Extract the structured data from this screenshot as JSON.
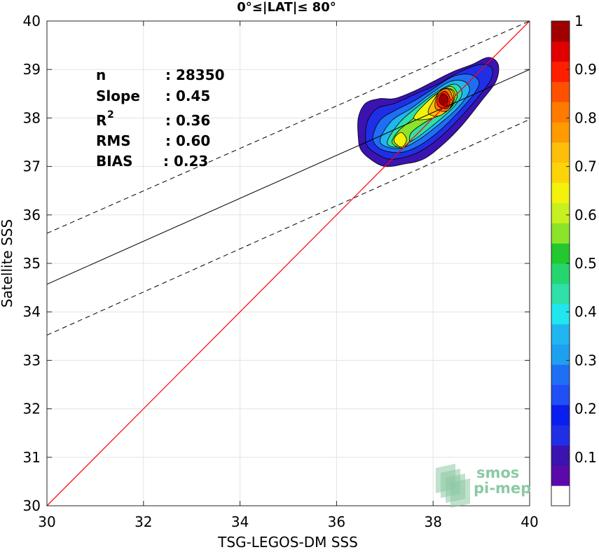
{
  "chart_data": {
    "type": "contour-scatter",
    "title": "0°≤|LAT|≤ 80°",
    "xlabel": "TSG-LEGOS-DM SSS",
    "ylabel": "Satellite SSS",
    "xlim": [
      30,
      40
    ],
    "ylim": [
      30,
      40
    ],
    "xticks": [
      "30",
      "32",
      "34",
      "36",
      "38",
      "40"
    ],
    "yticks": [
      "30",
      "31",
      "32",
      "33",
      "34",
      "35",
      "36",
      "37",
      "38",
      "39",
      "40"
    ],
    "grid": true,
    "stats": [
      {
        "label": "n",
        "value": ": 28350"
      },
      {
        "label": "Slope",
        "value": ": 0.45"
      },
      {
        "label": "R",
        "sup": "2",
        "value": ": 0.36"
      },
      {
        "label": "RMS",
        "value": ": 0.60"
      },
      {
        "label": "BIAS",
        "value": ": 0.23"
      }
    ],
    "lines": {
      "identity": {
        "x": [
          30,
          40
        ],
        "y": [
          30,
          40
        ],
        "color": "#ff0000"
      },
      "fit": {
        "x": [
          30,
          40
        ],
        "y": [
          34.57,
          39.0
        ],
        "color": "#000000"
      },
      "fit_upper": {
        "x": [
          30,
          40
        ],
        "y": [
          35.62,
          40.0
        ],
        "color": "#000000",
        "style": "dashed"
      },
      "fit_lower": {
        "x": [
          30,
          40
        ],
        "y": [
          33.52,
          37.97
        ],
        "color": "#000000",
        "style": "dashed"
      }
    },
    "density_contours": [
      {
        "level": 0.05,
        "color": "#3a13b0",
        "points": [
          [
            36.45,
            37.6
          ],
          [
            36.5,
            37.35
          ],
          [
            36.7,
            37.15
          ],
          [
            37.0,
            37.0
          ],
          [
            37.4,
            37.05
          ],
          [
            37.8,
            37.15
          ],
          [
            38.2,
            37.45
          ],
          [
            38.6,
            37.85
          ],
          [
            39.0,
            38.35
          ],
          [
            39.3,
            38.75
          ],
          [
            39.35,
            39.1
          ],
          [
            39.15,
            39.25
          ],
          [
            38.8,
            39.1
          ],
          [
            38.4,
            38.95
          ],
          [
            38.0,
            38.75
          ],
          [
            37.6,
            38.55
          ],
          [
            37.2,
            38.4
          ],
          [
            36.9,
            38.4
          ],
          [
            36.6,
            38.3
          ],
          [
            36.45,
            38.0
          ]
        ]
      },
      {
        "level": 0.15,
        "color": "#1f2fe6",
        "points": [
          [
            36.6,
            37.6
          ],
          [
            36.65,
            37.4
          ],
          [
            36.85,
            37.25
          ],
          [
            37.1,
            37.15
          ],
          [
            37.45,
            37.2
          ],
          [
            37.8,
            37.35
          ],
          [
            38.2,
            37.65
          ],
          [
            38.6,
            38.05
          ],
          [
            38.95,
            38.45
          ],
          [
            39.2,
            38.8
          ],
          [
            39.2,
            39.05
          ],
          [
            38.95,
            39.1
          ],
          [
            38.55,
            38.95
          ],
          [
            38.1,
            38.7
          ],
          [
            37.65,
            38.5
          ],
          [
            37.2,
            38.3
          ],
          [
            36.85,
            38.2
          ],
          [
            36.65,
            37.95
          ]
        ]
      },
      {
        "level": 0.25,
        "color": "#1f6ff5",
        "points": [
          [
            36.75,
            37.6
          ],
          [
            36.85,
            37.4
          ],
          [
            37.1,
            37.3
          ],
          [
            37.4,
            37.3
          ],
          [
            37.75,
            37.45
          ],
          [
            38.15,
            37.75
          ],
          [
            38.55,
            38.15
          ],
          [
            38.85,
            38.5
          ],
          [
            38.95,
            38.75
          ],
          [
            38.75,
            38.9
          ],
          [
            38.4,
            38.85
          ],
          [
            38.0,
            38.6
          ],
          [
            37.6,
            38.35
          ],
          [
            37.2,
            38.15
          ],
          [
            36.9,
            37.95
          ]
        ]
      },
      {
        "level": 0.35,
        "color": "#21b6f0",
        "points": [
          [
            36.9,
            37.55
          ],
          [
            37.05,
            37.4
          ],
          [
            37.35,
            37.38
          ],
          [
            37.7,
            37.55
          ],
          [
            38.1,
            37.85
          ],
          [
            38.5,
            38.2
          ],
          [
            38.75,
            38.55
          ],
          [
            38.65,
            38.75
          ],
          [
            38.35,
            38.75
          ],
          [
            37.95,
            38.5
          ],
          [
            37.55,
            38.2
          ],
          [
            37.15,
            37.95
          ]
        ]
      },
      {
        "level": 0.45,
        "color": "#2fe0a8",
        "points": [
          [
            37.05,
            37.5
          ],
          [
            37.25,
            37.4
          ],
          [
            37.6,
            37.55
          ],
          [
            38.0,
            37.85
          ],
          [
            38.4,
            38.2
          ],
          [
            38.6,
            38.5
          ],
          [
            38.45,
            38.7
          ],
          [
            38.1,
            38.55
          ],
          [
            37.7,
            38.25
          ],
          [
            37.3,
            37.9
          ]
        ]
      },
      {
        "level": 0.55,
        "color": "#8be32a",
        "points": [
          [
            37.15,
            37.5
          ],
          [
            37.35,
            37.38
          ],
          [
            37.5,
            37.5
          ],
          [
            37.55,
            37.7
          ],
          [
            37.9,
            37.95
          ],
          [
            38.3,
            38.15
          ],
          [
            38.5,
            38.45
          ],
          [
            38.35,
            38.65
          ],
          [
            37.95,
            38.4
          ],
          [
            37.6,
            38.0
          ],
          [
            37.3,
            37.75
          ]
        ]
      },
      {
        "level": 0.62,
        "color": "#f2f20a",
        "points": [
          [
            37.2,
            37.5
          ],
          [
            37.35,
            37.4
          ],
          [
            37.45,
            37.55
          ],
          [
            37.35,
            37.7
          ],
          [
            37.22,
            37.62
          ]
        ]
      },
      {
        "level": 0.62,
        "color": "#f2f20a",
        "points": [
          [
            37.6,
            38.0
          ],
          [
            38.0,
            38.0
          ],
          [
            38.35,
            38.2
          ],
          [
            38.45,
            38.5
          ],
          [
            38.3,
            38.6
          ],
          [
            37.95,
            38.4
          ]
        ]
      },
      {
        "level": 0.7,
        "color": "#fdbf0a",
        "points": [
          [
            37.9,
            38.1
          ],
          [
            38.15,
            38.05
          ],
          [
            38.4,
            38.3
          ],
          [
            38.4,
            38.55
          ],
          [
            38.2,
            38.6
          ],
          [
            38.0,
            38.35
          ]
        ]
      },
      {
        "level": 0.8,
        "color": "#ff7a00",
        "points": [
          [
            38.05,
            38.2
          ],
          [
            38.3,
            38.15
          ],
          [
            38.4,
            38.4
          ],
          [
            38.3,
            38.6
          ],
          [
            38.1,
            38.5
          ]
        ]
      },
      {
        "level": 0.9,
        "color": "#ff1e00",
        "points": [
          [
            38.1,
            38.25
          ],
          [
            38.3,
            38.2
          ],
          [
            38.35,
            38.4
          ],
          [
            38.25,
            38.55
          ],
          [
            38.1,
            38.45
          ]
        ]
      },
      {
        "level": 1.0,
        "color": "#a00000",
        "points": [
          [
            38.15,
            38.3
          ],
          [
            38.28,
            38.25
          ],
          [
            38.3,
            38.42
          ],
          [
            38.2,
            38.5
          ],
          [
            38.13,
            38.4
          ]
        ]
      }
    ],
    "colorbar": {
      "range": [
        0,
        1
      ],
      "ticks": [
        "0.1",
        "0.2",
        "0.3",
        "0.4",
        "0.5",
        "0.6",
        "0.7",
        "0.8",
        "0.9",
        "1"
      ],
      "colors": [
        "#ffffff",
        "#5a0aa8",
        "#3a13b0",
        "#1f2fe6",
        "#0a1ef0",
        "#1f4ff5",
        "#1f6ff5",
        "#1ea0f0",
        "#21b6f0",
        "#20e6f0",
        "#2fe0a8",
        "#25d66f",
        "#22c82e",
        "#8be32a",
        "#c8f020",
        "#f2f20a",
        "#fdd40a",
        "#fdbf0a",
        "#ff9a00",
        "#ff7a00",
        "#ff5000",
        "#ff1e00",
        "#e00000",
        "#a00000"
      ]
    },
    "watermark": {
      "line1": "smos",
      "line2": "pi-mep",
      "color": "#8cc9a4"
    }
  }
}
